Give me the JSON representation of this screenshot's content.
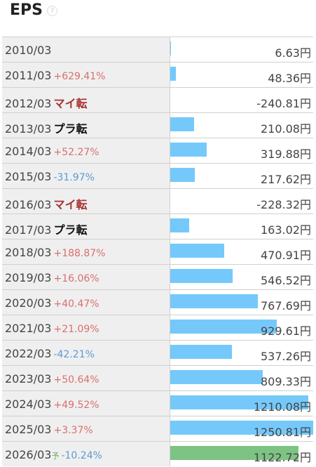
{
  "header": {
    "title": "EPS",
    "help_icon": "?"
  },
  "table": {
    "bar_color": "#74c9fa",
    "rows": [
      {
        "period": "2010/03",
        "value": 6.63,
        "value_label": "6.63円"
      },
      {
        "period": "2011/03",
        "note": "+629.41%",
        "note_color": "#d9706f",
        "value": 48.36,
        "value_label": "48.36円"
      },
      {
        "period": "2012/03",
        "note": "マイ転",
        "note_color": "#a83232",
        "note_bold": true,
        "value": -240.81,
        "value_label": "-240.81円"
      },
      {
        "period": "2013/03",
        "note": "プラ転",
        "note_color": "#111111",
        "note_bold": true,
        "value": 210.08,
        "value_label": "210.08円"
      },
      {
        "period": "2014/03",
        "note": "+52.27%",
        "note_color": "#d9706f",
        "value": 319.88,
        "value_label": "319.88円"
      },
      {
        "period": "2015/03",
        "note": "-31.97%",
        "note_color": "#5b9bd5",
        "value": 217.62,
        "value_label": "217.62円"
      },
      {
        "period": "2016/03",
        "note": "マイ転",
        "note_color": "#a83232",
        "note_bold": true,
        "value": -228.32,
        "value_label": "-228.32円"
      },
      {
        "period": "2017/03",
        "note": "プラ転",
        "note_color": "#111111",
        "note_bold": true,
        "value": 163.02,
        "value_label": "163.02円"
      },
      {
        "period": "2018/03",
        "note": "+188.87%",
        "note_color": "#d9706f",
        "value": 470.91,
        "value_label": "470.91円"
      },
      {
        "period": "2019/03",
        "note": "+16.06%",
        "note_color": "#d9706f",
        "value": 546.52,
        "value_label": "546.52円"
      },
      {
        "period": "2020/03",
        "note": "+40.47%",
        "note_color": "#d9706f",
        "value": 767.69,
        "value_label": "767.69円"
      },
      {
        "period": "2021/03",
        "note": "+21.09%",
        "note_color": "#d9706f",
        "value": 929.61,
        "value_label": "929.61円"
      },
      {
        "period": "2022/03",
        "note": "-42.21%",
        "note_color": "#5b9bd5",
        "value": 537.26,
        "value_label": "537.26円"
      },
      {
        "period": "2023/03",
        "note": "+50.64%",
        "note_color": "#d9706f",
        "value": 809.33,
        "value_label": "809.33円"
      },
      {
        "period": "2024/03",
        "note": "+49.52%",
        "note_color": "#d9706f",
        "value": 1210.08,
        "value_label": "1210.08円"
      },
      {
        "period": "2025/03",
        "note": "+3.37%",
        "note_color": "#d9706f",
        "value": 1250.81,
        "value_label": "1250.81円"
      },
      {
        "period": "2026/03",
        "forecast_mark": "予",
        "note": "-10.24%",
        "note_color": "#5b9bd5",
        "bar_color": "#7dc383",
        "value": 1122.72,
        "value_label": "1122.72円"
      }
    ]
  }
}
